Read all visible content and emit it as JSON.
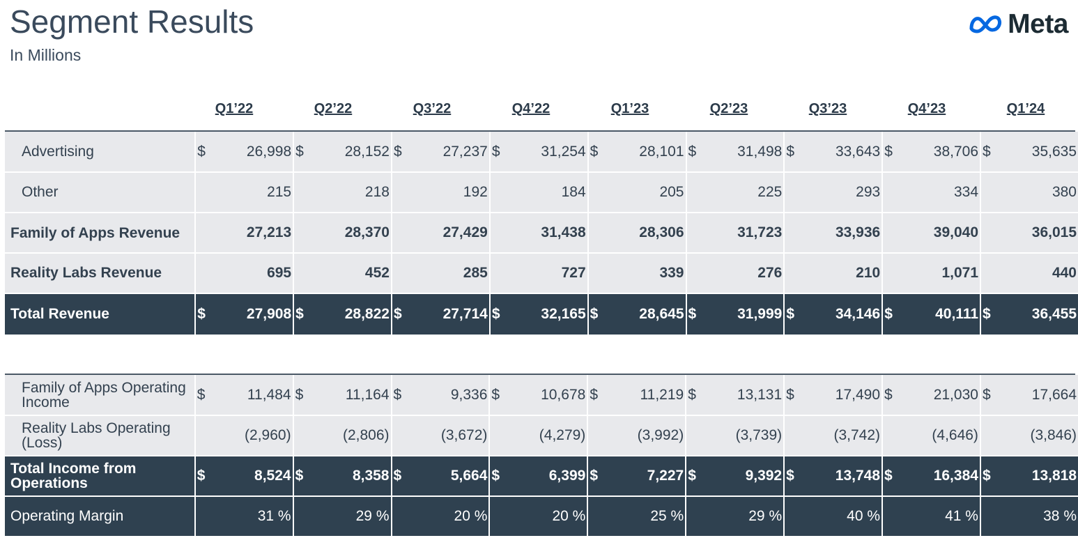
{
  "title": "Segment Results",
  "subtitle": "In Millions",
  "brand": {
    "name": "Meta",
    "icon": "meta-infinity-logo",
    "color": "#0668e1"
  },
  "colors": {
    "dark_row": "#2f4150",
    "light_row": "#e8e9ec",
    "text": "#33414f"
  },
  "quarters": [
    "Q1’22",
    "Q2’22",
    "Q3’22",
    "Q4’22",
    "Q1’23",
    "Q2’23",
    "Q3’23",
    "Q4’23",
    "Q1’24"
  ],
  "revenue_rows": [
    {
      "label": "Advertising",
      "currency": "$",
      "values": [
        "26,998",
        "28,152",
        "27,237",
        "31,254",
        "28,101",
        "31,498",
        "33,643",
        "38,706",
        "35,635"
      ]
    },
    {
      "label": "Other",
      "currency": "",
      "values": [
        "215",
        "218",
        "192",
        "184",
        "205",
        "225",
        "293",
        "334",
        "380"
      ]
    },
    {
      "label": "Family of Apps Revenue",
      "currency": "",
      "values": [
        "27,213",
        "28,370",
        "27,429",
        "31,438",
        "28,306",
        "31,723",
        "33,936",
        "39,040",
        "36,015"
      ]
    },
    {
      "label": "Reality Labs Revenue",
      "currency": "",
      "values": [
        "695",
        "452",
        "285",
        "727",
        "339",
        "276",
        "210",
        "1,071",
        "440"
      ]
    },
    {
      "label": "Total Revenue",
      "currency": "$",
      "values": [
        "27,908",
        "28,822",
        "27,714",
        "32,165",
        "28,645",
        "31,999",
        "34,146",
        "40,111",
        "36,455"
      ]
    }
  ],
  "income_rows": [
    {
      "label": "Family of Apps Operating Income",
      "currency": "$",
      "values": [
        "11,484",
        "11,164",
        "9,336",
        "10,678",
        "11,219",
        "13,131",
        "17,490",
        "21,030",
        "17,664"
      ]
    },
    {
      "label": "Reality Labs Operating (Loss)",
      "currency": "",
      "values": [
        "(2,960)",
        "(2,806)",
        "(3,672)",
        "(4,279)",
        "(3,992)",
        "(3,739)",
        "(3,742)",
        "(4,646)",
        "(3,846)"
      ]
    },
    {
      "label": "Total Income from Operations",
      "currency": "$",
      "values": [
        "8,524",
        "8,358",
        "5,664",
        "6,399",
        "7,227",
        "9,392",
        "13,748",
        "16,384",
        "13,818"
      ]
    },
    {
      "label": "Operating Margin",
      "currency": "",
      "values": [
        "31 %",
        "29 %",
        "20 %",
        "20 %",
        "25 %",
        "29 %",
        "40 %",
        "41 %",
        "38 %"
      ]
    }
  ]
}
